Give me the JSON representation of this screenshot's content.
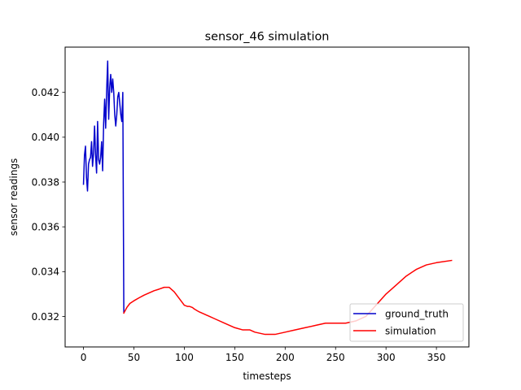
{
  "chart_data": {
    "type": "line",
    "title": "sensor_46 simulation",
    "xlabel": "timesteps",
    "ylabel": "sensor readings",
    "xlim": [
      -18.2,
      382.2
    ],
    "ylim": [
      0.03064,
      0.04402
    ],
    "xticks": [
      0,
      50,
      100,
      150,
      200,
      250,
      300,
      350
    ],
    "yticks": [
      0.032,
      0.034,
      0.036,
      0.038,
      0.04,
      0.042
    ],
    "ytick_labels": [
      "0.032",
      "0.034",
      "0.036",
      "0.038",
      "0.040",
      "0.042"
    ],
    "grid": false,
    "legend": {
      "position": "lower-right"
    },
    "series": [
      {
        "name": "ground_truth",
        "color": "#0000cc",
        "x": [
          0,
          1,
          2,
          3,
          4,
          5,
          6,
          7,
          8,
          9,
          10,
          11,
          12,
          13,
          14,
          15,
          16,
          17,
          18,
          19,
          20,
          21,
          22,
          23,
          24,
          25,
          26,
          27,
          28,
          29,
          30,
          31,
          32,
          33,
          34,
          35,
          36,
          37,
          38,
          39,
          40
        ],
        "y": [
          0.0379,
          0.0392,
          0.0396,
          0.0382,
          0.0376,
          0.0388,
          0.039,
          0.0391,
          0.0398,
          0.0387,
          0.0393,
          0.0405,
          0.0392,
          0.0384,
          0.0407,
          0.039,
          0.0388,
          0.0391,
          0.0398,
          0.0385,
          0.0406,
          0.0417,
          0.0404,
          0.0421,
          0.0434,
          0.0408,
          0.0422,
          0.0428,
          0.042,
          0.0426,
          0.042,
          0.041,
          0.0405,
          0.041,
          0.0418,
          0.042,
          0.0415,
          0.041,
          0.0407,
          0.042,
          0.0322
        ]
      },
      {
        "name": "simulation",
        "color": "#ff0000",
        "x": [
          40,
          43,
          46,
          50,
          55,
          60,
          65,
          70,
          75,
          80,
          85,
          90,
          95,
          100,
          103,
          105,
          108,
          110,
          113,
          115,
          120,
          125,
          130,
          140,
          150,
          158,
          165,
          170,
          180,
          190,
          200,
          210,
          220,
          230,
          240,
          250,
          260,
          270,
          280,
          290,
          300,
          310,
          320,
          330,
          340,
          350,
          365
        ],
        "y": [
          0.03215,
          0.0324,
          0.03258,
          0.0327,
          0.03283,
          0.03295,
          0.03305,
          0.03315,
          0.03322,
          0.0333,
          0.0333,
          0.0331,
          0.0328,
          0.0325,
          0.03245,
          0.03245,
          0.0324,
          0.03233,
          0.03225,
          0.0322,
          0.0321,
          0.032,
          0.0319,
          0.0317,
          0.0315,
          0.0314,
          0.0314,
          0.0313,
          0.0312,
          0.0312,
          0.0313,
          0.0314,
          0.0315,
          0.0316,
          0.0317,
          0.0317,
          0.0317,
          0.0318,
          0.032,
          0.0325,
          0.033,
          0.0334,
          0.0338,
          0.0341,
          0.0343,
          0.0344,
          0.0345
        ]
      }
    ]
  }
}
